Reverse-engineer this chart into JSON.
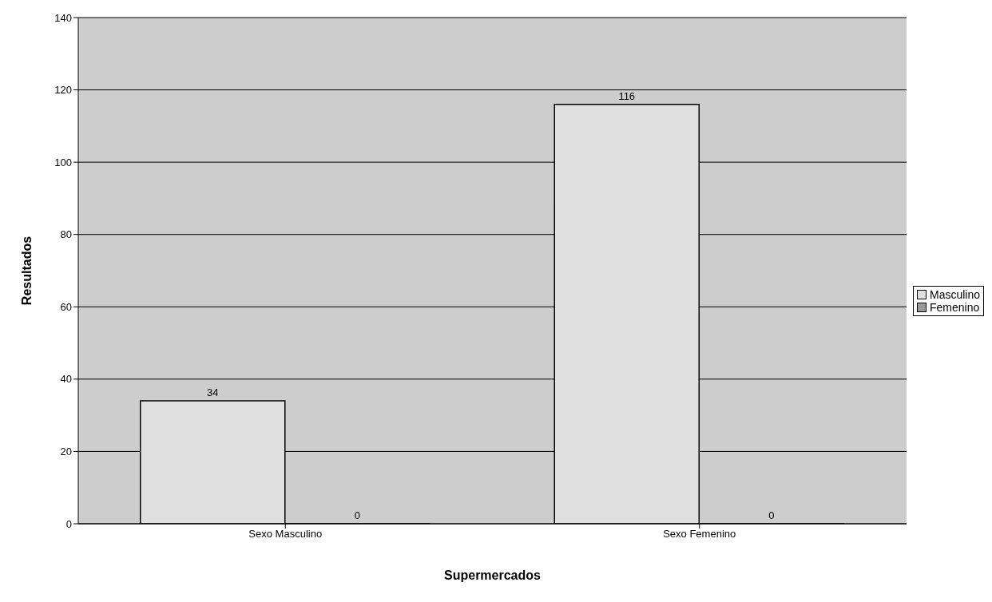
{
  "chart_data": {
    "type": "bar",
    "xlabel": "Supermercados",
    "ylabel": "Resultados",
    "categories": [
      "Sexo Masculino",
      "Sexo Femenino"
    ],
    "series": [
      {
        "name": "Masculino",
        "color": "#e0e0e0",
        "values": [
          34,
          116
        ]
      },
      {
        "name": "Femenino",
        "color": "#9a9a9a",
        "values": [
          0,
          0
        ]
      }
    ],
    "ylim": [
      0,
      140
    ],
    "yticks": [
      0,
      20,
      40,
      60,
      80,
      100,
      120,
      140
    ],
    "grid": "y",
    "legend": "right",
    "data_labels": true
  }
}
